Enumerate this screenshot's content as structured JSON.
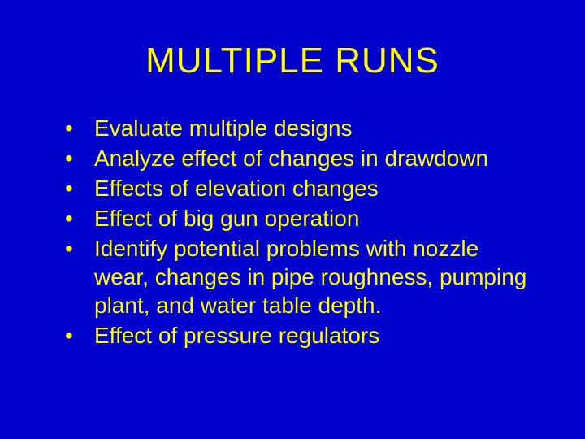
{
  "slide": {
    "title": "MULTIPLE RUNS",
    "bullets": [
      "Evaluate multiple designs",
      "Analyze effect of changes in drawdown",
      "Effects of elevation changes",
      "Effect of big gun operation",
      "Identify potential problems with nozzle wear, changes in pipe roughness, pumping plant, and water table depth.",
      "Effect of pressure regulators"
    ],
    "background_color": "#0000cc",
    "text_color": "#ffff00",
    "title_fontsize": 44,
    "body_fontsize": 28,
    "font_family": "Arial"
  }
}
